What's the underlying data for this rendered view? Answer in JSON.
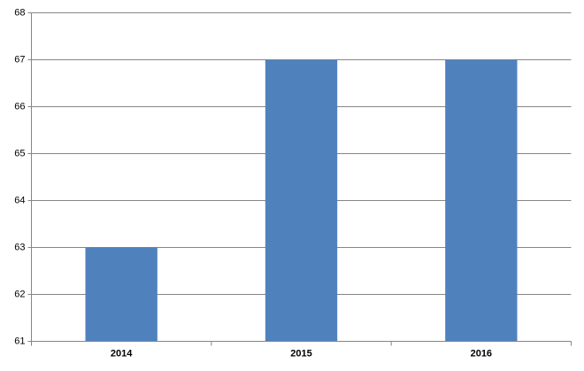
{
  "chart_data": {
    "type": "bar",
    "categories": [
      "2014",
      "2015",
      "2016"
    ],
    "values": [
      63,
      67,
      67
    ],
    "color": "#4f81bd",
    "ylim": [
      61,
      68
    ],
    "yticks": [
      61,
      62,
      63,
      64,
      65,
      66,
      67,
      68
    ],
    "grid": true
  }
}
